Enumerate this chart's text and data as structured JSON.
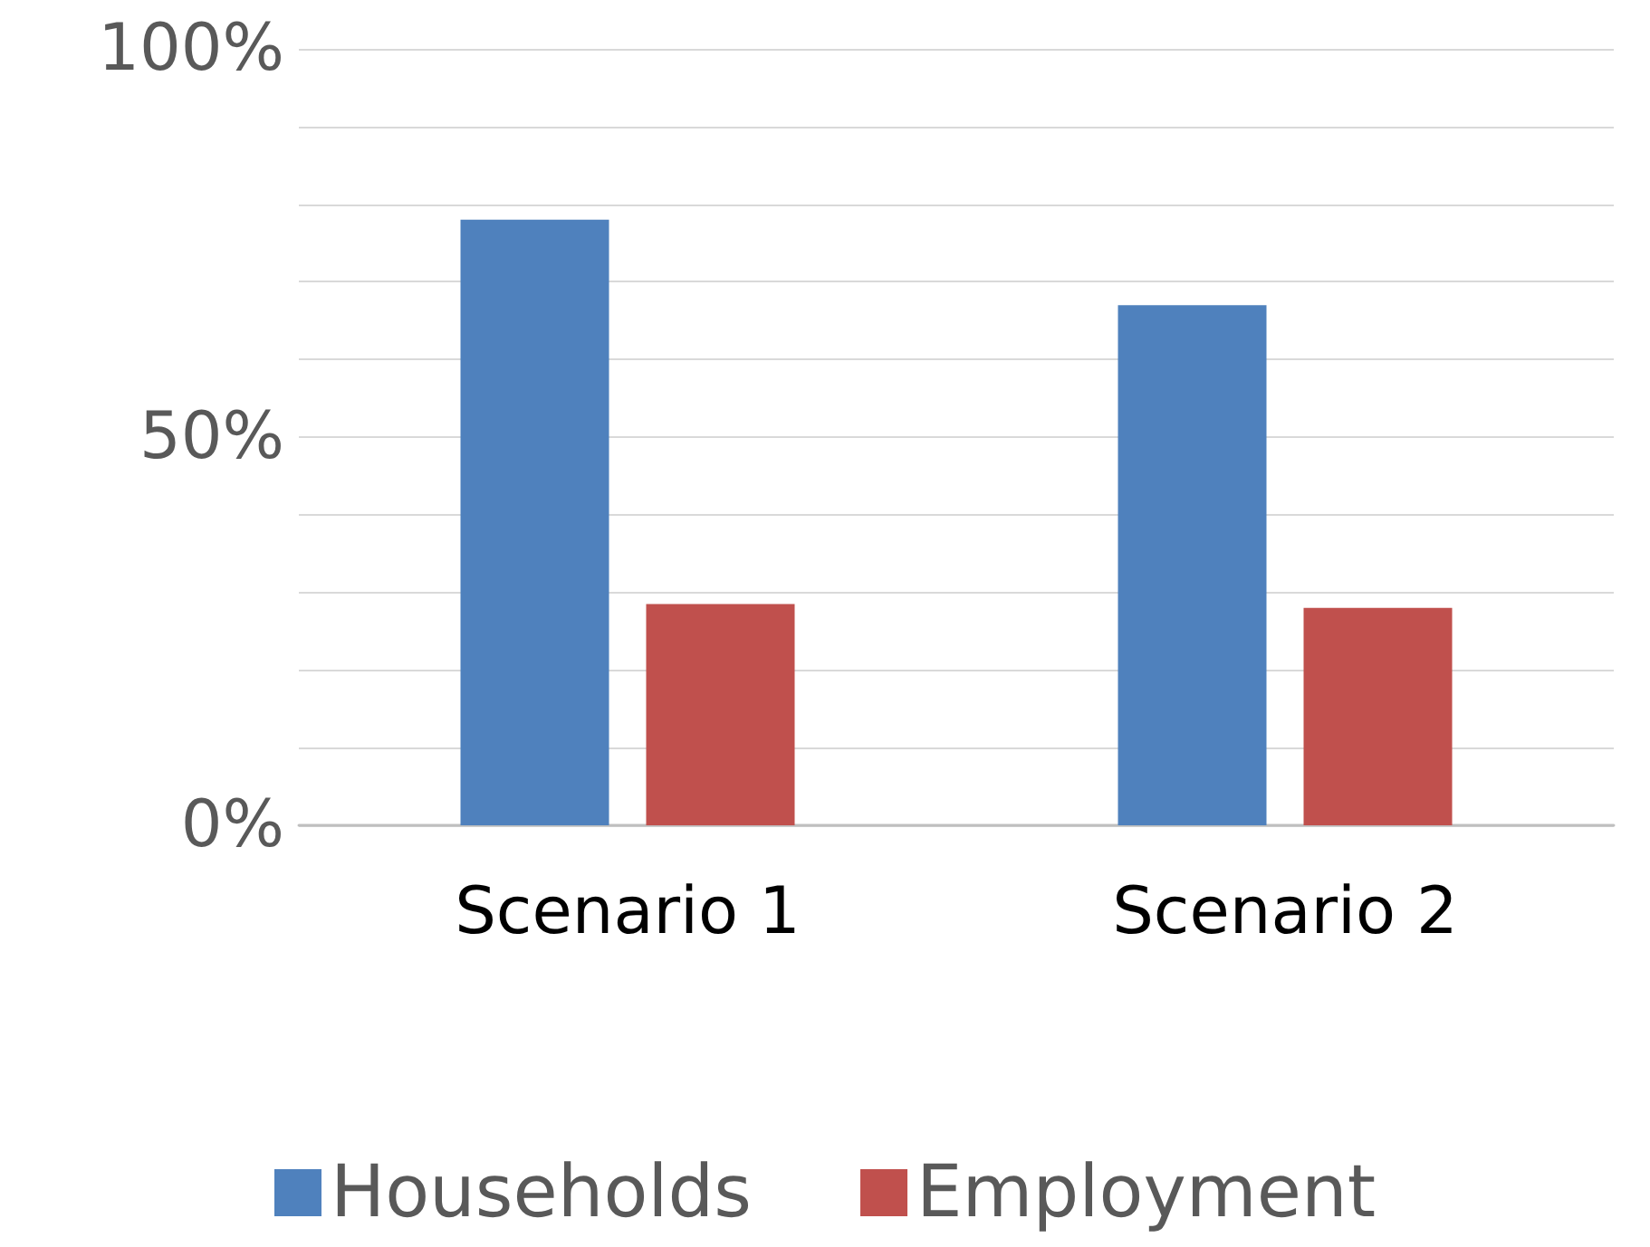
{
  "chart_data": {
    "type": "bar",
    "categories": [
      "Scenario 1",
      "Scenario 2"
    ],
    "series": [
      {
        "name": "Households",
        "color": "#4f81bd",
        "values": [
          78,
          67
        ]
      },
      {
        "name": "Employment",
        "color": "#c0504d",
        "values": [
          28.5,
          28
        ]
      }
    ],
    "ylim": [
      0,
      100
    ],
    "yticks": [
      {
        "value": 0,
        "label": "0%"
      },
      {
        "value": 10,
        "label": null
      },
      {
        "value": 20,
        "label": null
      },
      {
        "value": 30,
        "label": null
      },
      {
        "value": 40,
        "label": null
      },
      {
        "value": 50,
        "label": "50%"
      },
      {
        "value": 60,
        "label": null
      },
      {
        "value": 70,
        "label": null
      },
      {
        "value": 80,
        "label": null
      },
      {
        "value": 90,
        "label": null
      },
      {
        "value": 100,
        "label": "100%"
      }
    ],
    "grid": "y",
    "legend": "bottom"
  }
}
